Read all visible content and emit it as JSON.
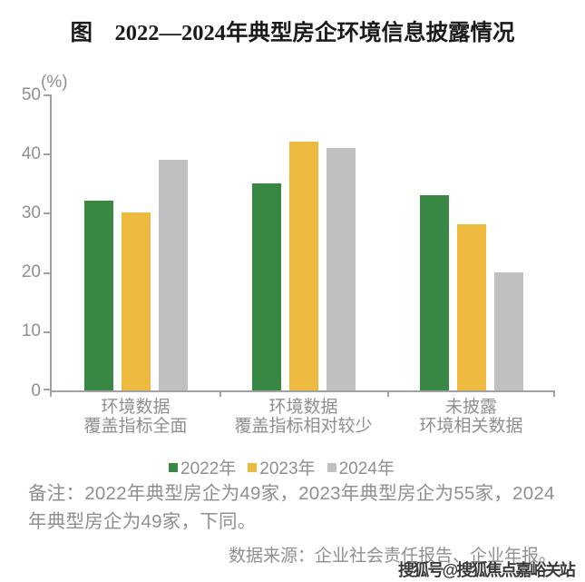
{
  "title": "图　2022—2024年典型房企环境信息披露情况",
  "y_axis_unit": "(%)",
  "chart_data": {
    "type": "bar",
    "categories": [
      [
        "环境数据",
        "覆盖指标全面"
      ],
      [
        "环境数据",
        "覆盖指标相对较少"
      ],
      [
        "未披露",
        "环境相关数据"
      ]
    ],
    "series": [
      {
        "name": "2022年",
        "color": "#388742",
        "values": [
          32,
          35,
          33
        ]
      },
      {
        "name": "2023年",
        "color": "#edb93e",
        "values": [
          30,
          42,
          28
        ]
      },
      {
        "name": "2024年",
        "color": "#bec0c2",
        "values": [
          39,
          41,
          20
        ]
      }
    ],
    "ylim": [
      0,
      50
    ],
    "yticks": [
      0,
      10,
      20,
      30,
      40,
      50
    ],
    "ylabel": "(%)",
    "grid": false,
    "legend_position": "bottom"
  },
  "notes": [
    "备注：2022年典型房企为49家，2023年典型房企为55家，2024",
    "年典型房企为49家，下同。"
  ],
  "source": "数据来源：企业社会责任报告、企业年报。",
  "watermark": "搜狐号@搜狐焦点嘉峪关站"
}
